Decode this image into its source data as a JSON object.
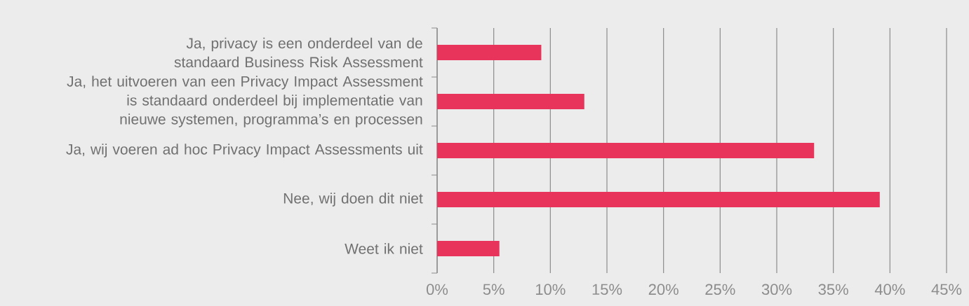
{
  "chart_data": {
    "type": "bar",
    "orientation": "horizontal",
    "categories": [
      "Ja, privacy is een onderdeel van de standaard Business Risk Assessment",
      "Ja, het uitvoeren van een Privacy Impact Assessment is standaard onderdeel bij implementatie van nieuwe systemen, programma’s en processen",
      "Ja, wij voeren ad hoc Privacy Impact Assessments uit",
      "Nee, wij doen dit niet",
      "Weet ik niet"
    ],
    "values": [
      9.2,
      13.0,
      33.3,
      39.1,
      5.5
    ],
    "color": "#e8335a",
    "xlim": [
      0,
      45
    ],
    "xticks": [
      {
        "value": 0,
        "label": "0%"
      },
      {
        "value": 5,
        "label": "5%"
      },
      {
        "value": 10,
        "label": "10%"
      },
      {
        "value": 15,
        "label": "15%"
      },
      {
        "value": 20,
        "label": "20%"
      },
      {
        "value": 25,
        "label": "25%"
      },
      {
        "value": 30,
        "label": "30%"
      },
      {
        "value": 35,
        "label": "35%"
      },
      {
        "value": 40,
        "label": "40%"
      },
      {
        "value": 45,
        "label": "45%"
      }
    ],
    "grid": "x"
  }
}
